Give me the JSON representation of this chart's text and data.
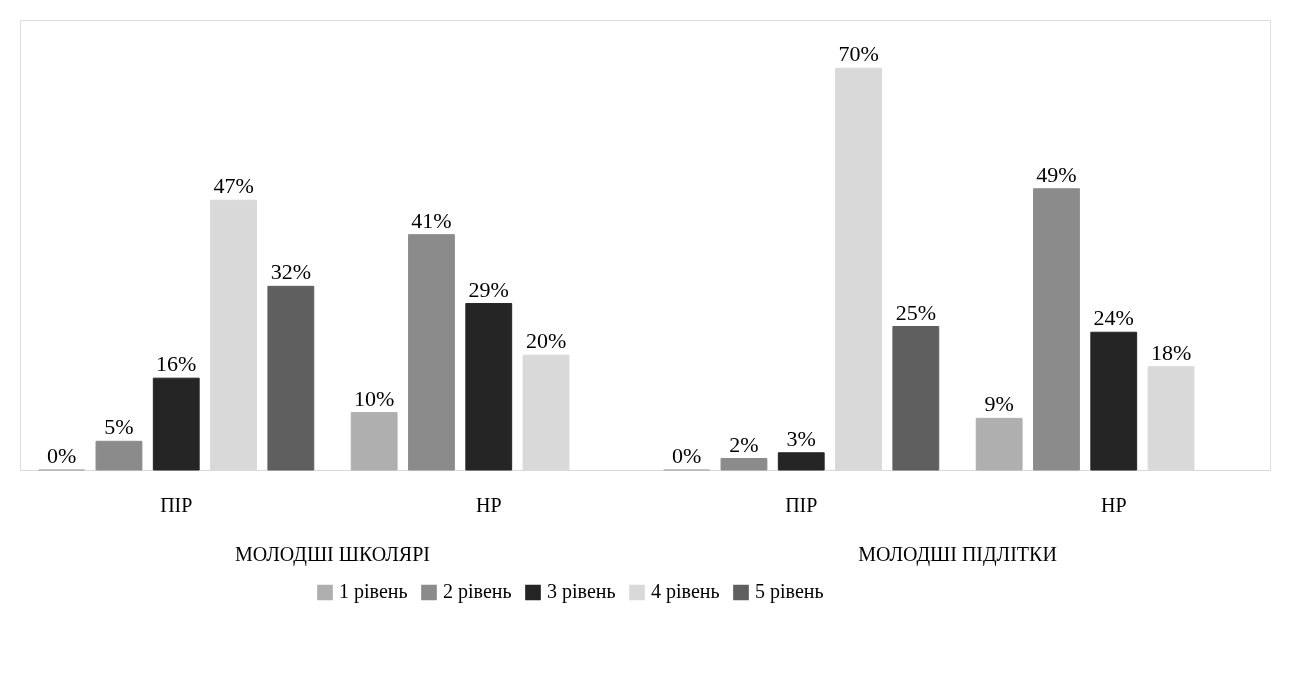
{
  "chart_data": {
    "type": "bar",
    "categories": [
      "ПІР",
      "НР",
      "ПІР",
      "НР"
    ],
    "annotations": [
      "МОЛОДШІ ШКОЛЯРІ",
      "МОЛОДШІ ПІДЛІТКИ"
    ],
    "series": [
      {
        "name": "1 рівень",
        "color": "#afafaf",
        "values": [
          0,
          10,
          0,
          9
        ],
        "value_labels": [
          "0%",
          "10%",
          "0%",
          "9%"
        ]
      },
      {
        "name": "2 рівень",
        "color": "#8b8b8b",
        "values": [
          5,
          41,
          2,
          49
        ],
        "value_labels": [
          "5%",
          "41%",
          "2%",
          "49%"
        ]
      },
      {
        "name": "3 рівень",
        "color": "#252525",
        "values": [
          16,
          29,
          3,
          24
        ],
        "value_labels": [
          "16%",
          "29%",
          "3%",
          "24%"
        ]
      },
      {
        "name": "4 рівень",
        "color": "#d9d9d9",
        "values": [
          47,
          20,
          70,
          18
        ],
        "value_labels": [
          "47%",
          "20%",
          "70%",
          "18%"
        ]
      },
      {
        "name": "5 рівень",
        "color": "#5f5f5f",
        "values": [
          32,
          null,
          25,
          null
        ],
        "value_labels": [
          "32%",
          null,
          "25%",
          null
        ]
      }
    ],
    "legend": "bottom",
    "grid": false
  }
}
